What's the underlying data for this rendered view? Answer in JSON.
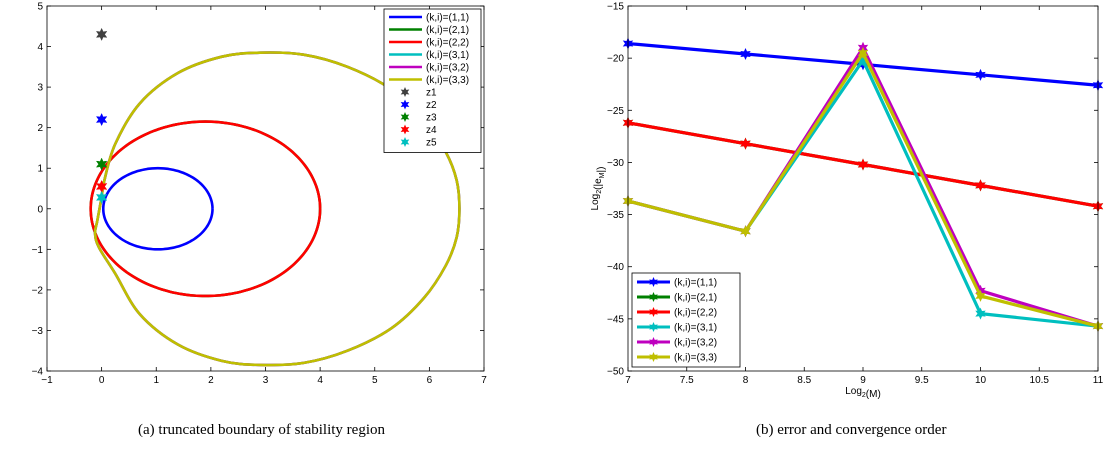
{
  "captions": {
    "a": "(a)  truncated boundary of stability region",
    "b": "(b)  error and convergence order"
  },
  "chart_data": [
    {
      "type": "line",
      "title": "",
      "xlabel": "",
      "ylabel": "",
      "xlim": [
        -1,
        7
      ],
      "ylim": [
        -4,
        5
      ],
      "xticks": [
        -1,
        0,
        1,
        2,
        3,
        4,
        5,
        6,
        7
      ],
      "yticks": [
        -4,
        -3,
        -2,
        -1,
        0,
        1,
        2,
        3,
        4,
        5
      ],
      "grid": false,
      "legend_position": "top-right",
      "curves": [
        {
          "name": "(k,i)=(1,1)",
          "color": "#0000ff",
          "shape": "ellipse",
          "center": [
            1.03,
            0
          ],
          "semi_axes": [
            1.0,
            1.0
          ]
        },
        {
          "name": "(k,i)=(2,1)",
          "color": "#008000",
          "shape": "ellipse",
          "center": [
            1.9,
            0
          ],
          "semi_axes": [
            2.1,
            2.15
          ]
        },
        {
          "name": "(k,i)=(2,2)",
          "color": "#ff0000",
          "shape": "ellipse",
          "center": [
            1.9,
            0
          ],
          "semi_axes": [
            2.1,
            2.15
          ]
        },
        {
          "name": "(k,i)=(3,1)",
          "color": "#00bfbf",
          "shape": "boundary",
          "points": [
            [
              0,
              0.28
            ],
            [
              0.05,
              0.7
            ],
            [
              0.25,
              1.6
            ],
            [
              0.7,
              2.6
            ],
            [
              1.4,
              3.35
            ],
            [
              2.2,
              3.75
            ],
            [
              2.9,
              3.85
            ],
            [
              3.7,
              3.8
            ],
            [
              4.5,
              3.5
            ],
            [
              5.3,
              2.95
            ],
            [
              5.9,
              2.2
            ],
            [
              6.3,
              1.4
            ],
            [
              6.5,
              0.7
            ],
            [
              6.55,
              0
            ],
            [
              6.5,
              -0.7
            ],
            [
              6.3,
              -1.4
            ],
            [
              5.9,
              -2.2
            ],
            [
              5.3,
              -2.95
            ],
            [
              4.5,
              -3.5
            ],
            [
              3.7,
              -3.8
            ],
            [
              2.9,
              -3.85
            ],
            [
              2.2,
              -3.75
            ],
            [
              1.4,
              -3.35
            ],
            [
              0.7,
              -2.6
            ],
            [
              0.25,
              -1.6
            ],
            [
              -0.05,
              -0.95
            ],
            [
              -0.12,
              -0.6
            ],
            [
              -0.08,
              -0.3
            ],
            [
              0,
              0.28
            ]
          ]
        },
        {
          "name": "(k,i)=(3,2)",
          "color": "#bf00bf",
          "shape": "boundary",
          "same_as": "(k,i)=(3,1)"
        },
        {
          "name": "(k,i)=(3,3)",
          "color": "#bfbf00",
          "shape": "boundary",
          "same_as": "(k,i)=(3,1)"
        }
      ],
      "points": [
        {
          "name": "z1",
          "color": "#404040",
          "x": 0,
          "y": 4.3
        },
        {
          "name": "z2",
          "color": "#0000ff",
          "x": 0,
          "y": 2.2
        },
        {
          "name": "z3",
          "color": "#008000",
          "x": 0,
          "y": 1.1
        },
        {
          "name": "z4",
          "color": "#ff0000",
          "x": 0,
          "y": 0.55
        },
        {
          "name": "z5",
          "color": "#00bfbf",
          "x": 0,
          "y": 0.28
        }
      ]
    },
    {
      "type": "line",
      "title": "",
      "xlabel": "Log2(M)",
      "ylabel": "Log2(|eM|)",
      "xlim": [
        7,
        11
      ],
      "ylim": [
        -50,
        -15
      ],
      "xticks": [
        7,
        7.5,
        8,
        8.5,
        9,
        9.5,
        10,
        10.5,
        11
      ],
      "yticks": [
        -50,
        -45,
        -40,
        -35,
        -30,
        -25,
        -20,
        -15
      ],
      "grid": false,
      "legend_position": "bottom-left",
      "x": [
        7,
        8,
        9,
        10,
        11
      ],
      "series": [
        {
          "name": "(k,i)=(1,1)",
          "color": "#0000ff",
          "values": [
            -18.6,
            -19.6,
            -20.6,
            -21.6,
            -22.6
          ]
        },
        {
          "name": "(k,i)=(2,1)",
          "color": "#008000",
          "values": [
            -26.2,
            -28.2,
            -30.2,
            -32.2,
            -34.2
          ]
        },
        {
          "name": "(k,i)=(2,2)",
          "color": "#ff0000",
          "values": [
            -26.2,
            -28.2,
            -30.2,
            -32.2,
            -34.2
          ]
        },
        {
          "name": "(k,i)=(3,1)",
          "color": "#00bfbf",
          "values": [
            -33.7,
            -36.6,
            -20.2,
            -44.5,
            -45.7
          ]
        },
        {
          "name": "(k,i)=(3,2)",
          "color": "#bf00bf",
          "values": [
            -33.7,
            -36.6,
            -19.0,
            -42.3,
            -45.7
          ]
        },
        {
          "name": "(k,i)=(3,3)",
          "color": "#bfbf00",
          "values": [
            -33.7,
            -36.6,
            -19.5,
            -42.8,
            -45.7
          ]
        }
      ]
    }
  ]
}
